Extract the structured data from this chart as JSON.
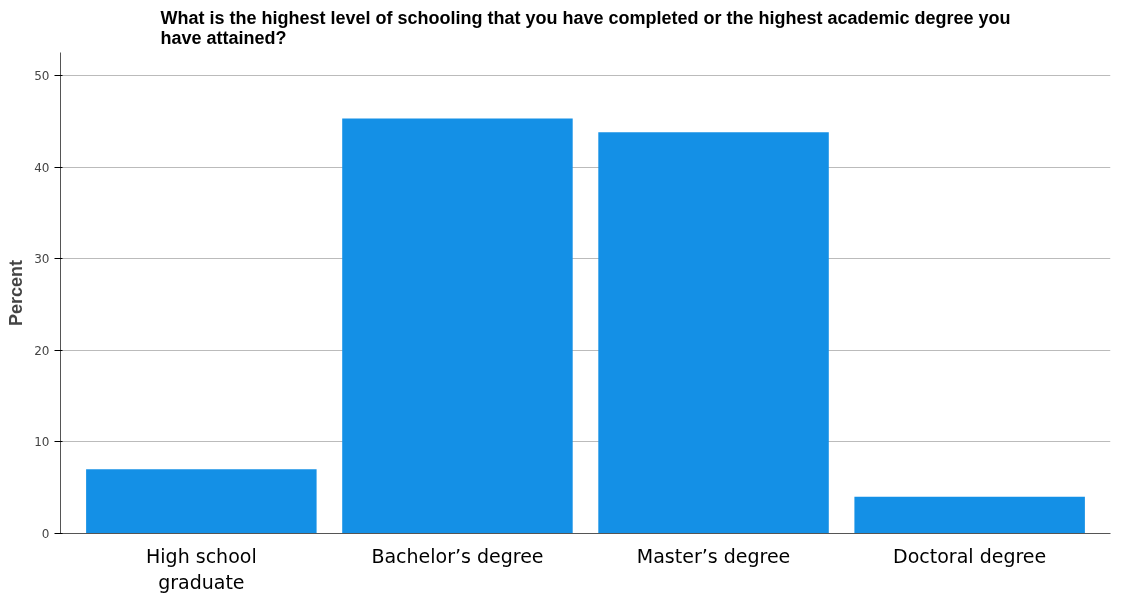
{
  "chart_data": {
    "type": "bar",
    "title": "What is the highest level of schooling that you have completed or the highest academic degree you have attained?",
    "ylabel": "Percent",
    "categories": [
      "High school graduate",
      "Bachelor’s degree",
      "Master’s degree",
      "Doctoral degree"
    ],
    "values": [
      7.0,
      45.3,
      43.8,
      4.0
    ],
    "color": "#1490e6",
    "ylim": [
      0,
      52.5
    ],
    "yticks": [
      0,
      10,
      20,
      30,
      40,
      50
    ],
    "grid": "y"
  }
}
